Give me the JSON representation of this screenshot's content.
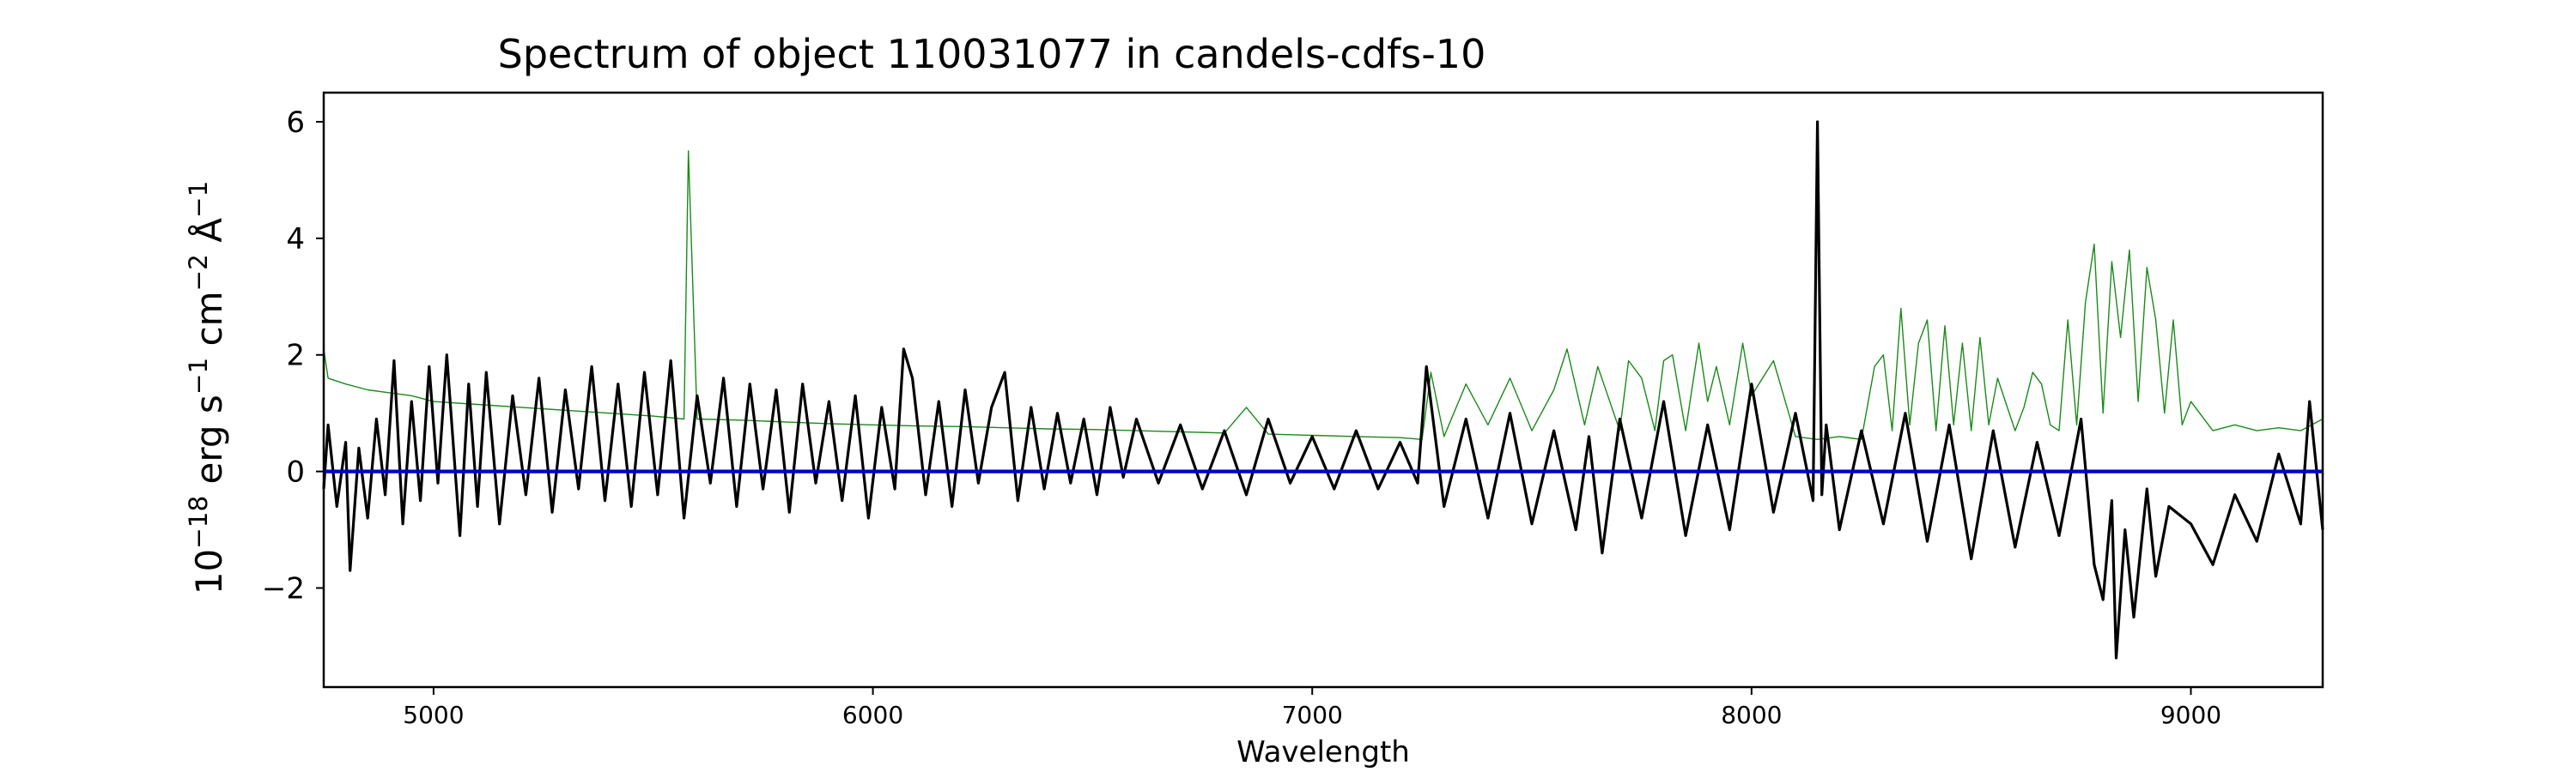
{
  "chart_data": {
    "type": "line",
    "title": "Spectrum of object 110031077 in candels-cdfs-10",
    "xlabel": "Wavelength",
    "ylabel_html": "10<tspan baseline-shift='super' font-size='70%'>−18</tspan> erg s<tspan baseline-shift='super' font-size='70%'>−1</tspan> cm<tspan baseline-shift='super' font-size='70%'>−2</tspan> Å<tspan baseline-shift='super' font-size='70%'>−1</tspan>",
    "xlim": [
      4750,
      9300
    ],
    "ylim": [
      -3.7,
      6.5
    ],
    "grid": false,
    "legend": "none",
    "x_ticks": [
      {
        "value": 5000,
        "label": "5000"
      },
      {
        "value": 6000,
        "label": "6000"
      },
      {
        "value": 7000,
        "label": "7000"
      },
      {
        "value": 8000,
        "label": "8000"
      },
      {
        "value": 9000,
        "label": "9000"
      }
    ],
    "y_ticks": [
      {
        "value": -2,
        "label": "−2"
      },
      {
        "value": 0,
        "label": "0"
      },
      {
        "value": 2,
        "label": "2"
      },
      {
        "value": 4,
        "label": "4"
      },
      {
        "value": 6,
        "label": "6"
      }
    ],
    "series": [
      {
        "color": "#1a8a1a",
        "style": "thin",
        "x": [
          4750,
          4760,
          4800,
          4850,
          4900,
          4950,
          5000,
          5100,
          5200,
          5300,
          5400,
          5500,
          5570,
          5580,
          5600,
          5700,
          5800,
          5900,
          6000,
          6100,
          6200,
          6300,
          6400,
          6500,
          6600,
          6700,
          6800,
          6850,
          6900,
          7000,
          7100,
          7200,
          7250,
          7270,
          7300,
          7350,
          7400,
          7450,
          7500,
          7550,
          7580,
          7620,
          7650,
          7700,
          7720,
          7750,
          7780,
          7800,
          7820,
          7850,
          7880,
          7900,
          7920,
          7950,
          7980,
          8000,
          8050,
          8100,
          8150,
          8200,
          8250,
          8280,
          8300,
          8320,
          8340,
          8360,
          8380,
          8400,
          8420,
          8440,
          8460,
          8480,
          8500,
          8520,
          8540,
          8560,
          8600,
          8620,
          8640,
          8660,
          8680,
          8700,
          8720,
          8740,
          8760,
          8780,
          8800,
          8820,
          8840,
          8860,
          8880,
          8900,
          8920,
          8940,
          8960,
          8980,
          9000,
          9050,
          9100,
          9150,
          9200,
          9250,
          9300
        ],
        "y": [
          2.1,
          1.6,
          1.5,
          1.4,
          1.35,
          1.3,
          1.2,
          1.15,
          1.1,
          1.05,
          1.0,
          0.95,
          0.9,
          5.5,
          0.9,
          0.88,
          0.85,
          0.82,
          0.8,
          0.78,
          0.77,
          0.75,
          0.73,
          0.72,
          0.7,
          0.68,
          0.66,
          1.1,
          0.64,
          0.62,
          0.6,
          0.58,
          0.55,
          1.7,
          0.6,
          1.5,
          0.8,
          1.6,
          0.7,
          1.4,
          2.1,
          0.8,
          1.8,
          0.7,
          1.9,
          1.6,
          0.7,
          1.9,
          2.0,
          0.7,
          2.2,
          1.2,
          1.8,
          0.8,
          2.2,
          1.3,
          1.9,
          0.6,
          0.55,
          0.6,
          0.55,
          1.8,
          2.0,
          0.7,
          2.8,
          0.8,
          2.2,
          2.6,
          0.7,
          2.5,
          0.8,
          2.2,
          0.7,
          2.3,
          0.8,
          1.6,
          0.7,
          1.1,
          1.7,
          1.5,
          0.8,
          0.7,
          2.6,
          0.8,
          2.9,
          3.9,
          1.0,
          3.6,
          2.3,
          3.8,
          1.2,
          3.5,
          2.6,
          1.0,
          2.6,
          0.8,
          1.2,
          0.7,
          0.8,
          0.7,
          0.75,
          0.7,
          0.9
        ]
      },
      {
        "color": "#000000",
        "style": "thick",
        "x": [
          4750,
          4760,
          4780,
          4800,
          4810,
          4830,
          4850,
          4870,
          4890,
          4910,
          4930,
          4950,
          4970,
          4990,
          5010,
          5030,
          5060,
          5080,
          5100,
          5120,
          5150,
          5180,
          5210,
          5240,
          5270,
          5300,
          5330,
          5360,
          5390,
          5420,
          5450,
          5480,
          5510,
          5540,
          5570,
          5600,
          5630,
          5660,
          5690,
          5720,
          5750,
          5780,
          5810,
          5840,
          5870,
          5900,
          5930,
          5960,
          5990,
          6020,
          6050,
          6070,
          6090,
          6120,
          6150,
          6180,
          6210,
          6240,
          6270,
          6300,
          6330,
          6360,
          6390,
          6420,
          6450,
          6480,
          6510,
          6540,
          6570,
          6600,
          6650,
          6700,
          6750,
          6800,
          6850,
          6900,
          6950,
          7000,
          7050,
          7100,
          7150,
          7200,
          7240,
          7260,
          7300,
          7350,
          7400,
          7450,
          7500,
          7550,
          7600,
          7630,
          7660,
          7700,
          7750,
          7800,
          7850,
          7900,
          7950,
          8000,
          8050,
          8100,
          8140,
          8150,
          8160,
          8170,
          8200,
          8250,
          8300,
          8350,
          8400,
          8450,
          8500,
          8550,
          8600,
          8650,
          8700,
          8750,
          8780,
          8800,
          8820,
          8830,
          8850,
          8870,
          8900,
          8920,
          8950,
          9000,
          9050,
          9100,
          9150,
          9200,
          9250,
          9270,
          9300
        ],
        "y": [
          -0.3,
          0.8,
          -0.6,
          0.5,
          -1.7,
          0.4,
          -0.8,
          0.9,
          -0.4,
          1.9,
          -0.9,
          1.2,
          -0.5,
          1.8,
          -0.2,
          2.0,
          -1.1,
          1.5,
          -0.6,
          1.7,
          -0.9,
          1.3,
          -0.4,
          1.6,
          -0.7,
          1.4,
          -0.3,
          1.8,
          -0.5,
          1.5,
          -0.6,
          1.7,
          -0.4,
          1.9,
          -0.8,
          1.3,
          -0.2,
          1.6,
          -0.6,
          1.5,
          -0.3,
          1.4,
          -0.7,
          1.5,
          -0.2,
          1.2,
          -0.5,
          1.3,
          -0.8,
          1.1,
          -0.3,
          2.1,
          1.6,
          -0.4,
          1.2,
          -0.6,
          1.4,
          -0.2,
          1.1,
          1.7,
          -0.5,
          1.1,
          -0.3,
          1.0,
          -0.2,
          0.9,
          -0.4,
          1.1,
          -0.1,
          0.9,
          -0.2,
          0.8,
          -0.3,
          0.7,
          -0.4,
          0.9,
          -0.2,
          0.6,
          -0.3,
          0.7,
          -0.3,
          0.5,
          -0.2,
          1.8,
          -0.6,
          0.9,
          -0.8,
          1.0,
          -0.9,
          0.7,
          -1.0,
          0.6,
          -1.4,
          0.9,
          -0.8,
          1.2,
          -1.1,
          0.8,
          -1.0,
          1.5,
          -0.7,
          1.0,
          -0.5,
          6.0,
          -0.4,
          0.8,
          -1.0,
          0.7,
          -0.9,
          1.0,
          -1.2,
          0.8,
          -1.5,
          0.7,
          -1.3,
          0.5,
          -1.1,
          0.9,
          -1.6,
          -2.2,
          -0.5,
          -3.2,
          -1.0,
          -2.5,
          -0.3,
          -1.8,
          -0.6,
          -0.9,
          -1.6,
          -0.4,
          -1.2,
          0.3,
          -0.9,
          1.2,
          -1.0
        ]
      },
      {
        "color": "#0000cc",
        "style": "zero",
        "x": [
          4750,
          9300
        ],
        "y": [
          0,
          0
        ]
      }
    ]
  }
}
